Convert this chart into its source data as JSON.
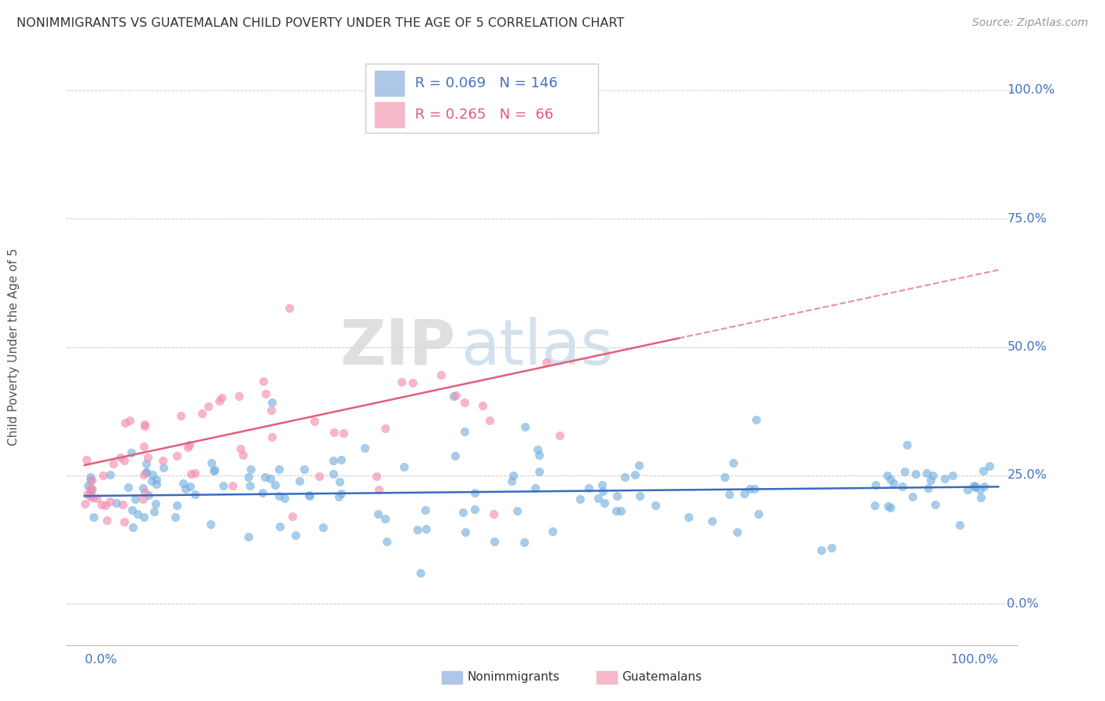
{
  "title": "NONIMMIGRANTS VS GUATEMALAN CHILD POVERTY UNDER THE AGE OF 5 CORRELATION CHART",
  "source": "Source: ZipAtlas.com",
  "ylabel": "Child Poverty Under the Age of 5",
  "nonimmigrants_color": "#7ab3e0",
  "guatemalans_color": "#f48fb1",
  "trend_nonimmigrants_color": "#3a6bbf",
  "trend_guatemalans_color": "#e0607a",
  "watermark_zip": "ZIP",
  "watermark_atlas": "atlas",
  "background_color": "#ffffff",
  "R_nonimmigrants": 0.069,
  "N_nonimmigrants": 146,
  "R_guatemalans": 0.265,
  "N_guatemalans": 66,
  "legend_r1": "R = 0.069   N = 146",
  "legend_r2": "R = 0.265   N =  66",
  "legend_color1": "#aec6e8",
  "legend_color2": "#f4b8c8",
  "ytick_vals": [
    0.0,
    0.25,
    0.5,
    0.75,
    1.0
  ],
  "ytick_labels": [
    "0.0%",
    "25.0%",
    "50.0%",
    "75.0%",
    "100.0%"
  ]
}
